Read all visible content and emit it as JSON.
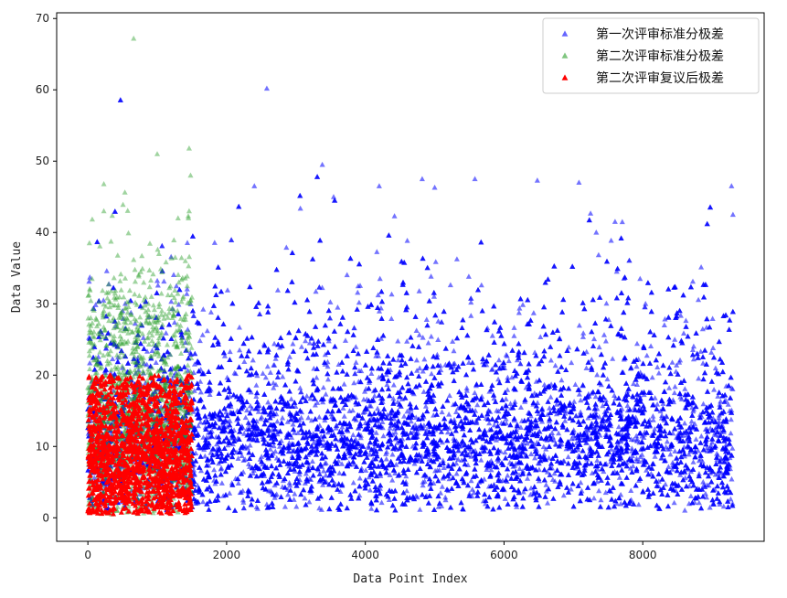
{
  "chart_data": {
    "type": "scatter",
    "xlabel": "Data Point Index",
    "ylabel": "Data Value",
    "xlim": [
      -450,
      9750
    ],
    "ylim": [
      -3.3,
      70.8
    ],
    "xticks": [
      0,
      2000,
      4000,
      6000,
      8000
    ],
    "yticks": [
      0,
      10,
      20,
      30,
      40,
      50,
      60,
      70
    ],
    "grid": false,
    "legend_position": "top-right",
    "marker": "triangle-up",
    "series": [
      {
        "name": "第一次评审标准分极差",
        "color": "#0000ff",
        "count": 9300,
        "x_range": [
          0,
          9300
        ],
        "typical_range": [
          3,
          25
        ],
        "notable_points": [
          [
            2580,
            60.2
          ],
          [
            3380,
            49.5
          ],
          [
            4820,
            47.5
          ],
          [
            5580,
            47.5
          ],
          [
            6480,
            47.3
          ],
          [
            7080,
            47.0
          ],
          [
            2400,
            46.5
          ],
          [
            9280,
            46.5
          ],
          [
            5000,
            46.3
          ],
          [
            4200,
            46.5
          ],
          [
            7600,
            41.5
          ],
          [
            9300,
            42.5
          ]
        ]
      },
      {
        "name": "第二次评审标准分极差",
        "color": "#2ca02c",
        "count": 1500,
        "x_range": [
          0,
          1500
        ],
        "typical_range": [
          1,
          30
        ],
        "notable_points": [
          [
            660,
            67.2
          ],
          [
            1460,
            51.8
          ],
          [
            1000,
            51.0
          ],
          [
            1480,
            48.0
          ],
          [
            230,
            46.8
          ],
          [
            1460,
            43.0
          ],
          [
            230,
            43.0
          ],
          [
            1450,
            42.0
          ],
          [
            1300,
            42.0
          ]
        ]
      },
      {
        "name": "第二次评审复议后极差",
        "color": "#ff0000",
        "count": 1500,
        "x_range": [
          0,
          1500
        ],
        "typical_range": [
          0.5,
          20
        ]
      }
    ]
  }
}
